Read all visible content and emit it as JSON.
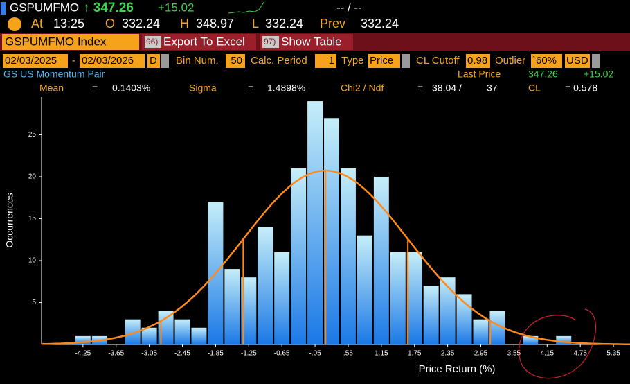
{
  "header": {
    "row1": [
      "GSPUMFMO",
      "↑ 347.26",
      "+15.02",
      "-- / --"
    ],
    "row2": [
      "At",
      "13:25",
      "O",
      "332.24",
      "H",
      "348.97",
      "L",
      "332.24",
      "Prev",
      "332.24"
    ],
    "tabs": [
      "GSPUMFMO Index",
      "96)",
      "Export To Excel",
      "97)",
      "Show Table"
    ],
    "controls": [
      "02/03/2025",
      "-",
      "02/03/2026",
      "D",
      "Bin Num.",
      "50",
      "Calc. Period",
      "1",
      "Type",
      "Price",
      "CL Cutoff",
      "0.98",
      "Outlier",
      "`60%",
      "USD"
    ],
    "info": [
      "GS US Momentum Pair",
      "Last Price",
      "347.26",
      "+15.02"
    ],
    "stats_row": [
      "Mean",
      "=",
      "Sigma",
      "=",
      "Chi2 / Ndf",
      "=",
      "38.04 /",
      "37",
      "CL",
      "= 0.578"
    ]
  },
  "chart_data": {
    "type": "histogram",
    "x_label": "Price Return (%)",
    "y_label": "Occurrences",
    "bins": [
      -4.4,
      -4.1,
      -3.8,
      -3.5,
      -3.2,
      -2.9,
      -2.6,
      -2.3,
      -2.0,
      -1.7,
      -1.4,
      -1.1,
      -0.8,
      -0.5,
      -0.2,
      0.1,
      0.4,
      0.7,
      1.0,
      1.3,
      1.6,
      1.9,
      2.2,
      2.5,
      2.8,
      3.1,
      3.4,
      3.7,
      4.0,
      4.3,
      4.6
    ],
    "values": [
      1,
      1,
      0,
      3,
      2,
      4,
      3,
      2,
      17,
      9,
      8,
      14,
      11,
      21,
      29,
      27,
      21,
      13,
      20,
      11,
      11,
      7,
      8,
      6,
      3,
      4,
      0,
      1,
      0,
      1
    ],
    "stats": {
      "mean": {
        "value": 0.1403,
        "label": "0.1403%"
      },
      "sigma": {
        "value": 1.4898,
        "label": "1.4898%"
      }
    },
    "xlim": [
      -5,
      5.65
    ],
    "xticks": [
      -4.25,
      -3.65,
      -3.05,
      -2.45,
      -1.85,
      -1.25,
      -0.65,
      {
        "value": -0.05,
        "label": "-.05"
      },
      {
        "value": 0.55,
        "label": ".55"
      },
      1.15,
      1.75,
      2.35,
      2.95,
      3.55,
      4.15,
      4.75,
      5.35
    ],
    "ylim": [
      0,
      29.5
    ],
    "yticks": [
      5,
      10,
      15,
      20,
      25
    ],
    "bar_color_top": "#c6eef8",
    "bar_color_bottom": "#1a78e6",
    "curve_color": "#ff8a1c"
  }
}
